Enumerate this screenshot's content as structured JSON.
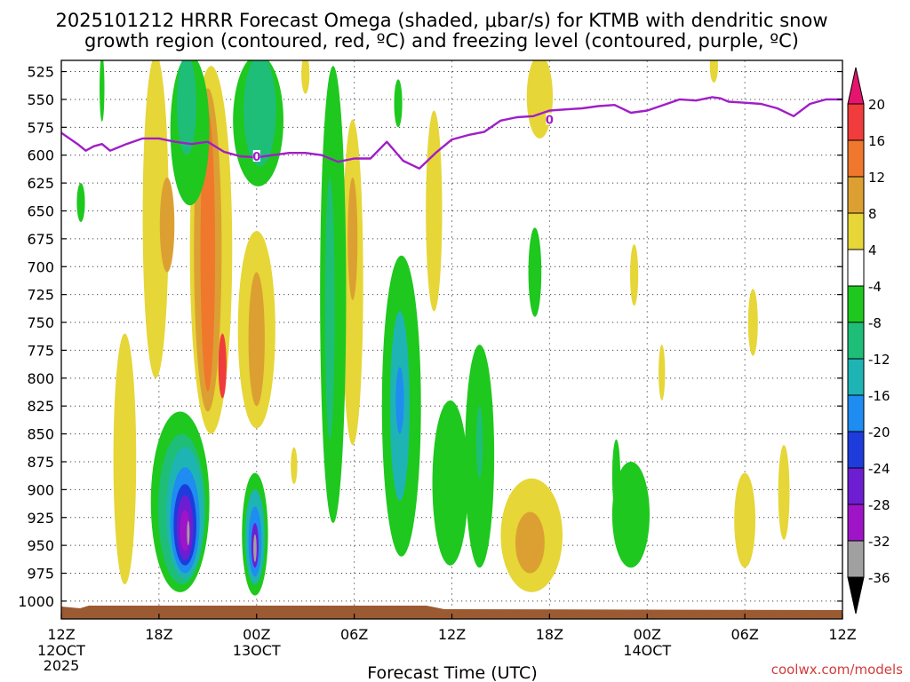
{
  "chart_data": {
    "type": "heatmap",
    "title_line1": "2025101212 HRRR Forecast Omega (shaded, μbar/s) for KTMB with dendritic snow",
    "title_line2": "growth region (contoured, red, ºC) and freezing level (contoured, purple, ºC)",
    "xlabel": "Forecast Time (UTC)",
    "ylabel": "Pressure (mb)",
    "credit": "coolwx.com/models",
    "x_range_hours": [
      0,
      48
    ],
    "x_ticks": [
      {
        "h": 0,
        "label": "12Z",
        "date": "12OCT",
        "year": "2025"
      },
      {
        "h": 6,
        "label": "18Z",
        "date": "",
        "year": ""
      },
      {
        "h": 12,
        "label": "00Z",
        "date": "13OCT",
        "year": ""
      },
      {
        "h": 18,
        "label": "06Z",
        "date": "",
        "year": ""
      },
      {
        "h": 24,
        "label": "12Z",
        "date": "",
        "year": ""
      },
      {
        "h": 30,
        "label": "18Z",
        "date": "",
        "year": ""
      },
      {
        "h": 36,
        "label": "00Z",
        "date": "14OCT",
        "year": ""
      },
      {
        "h": 42,
        "label": "06Z",
        "date": "",
        "year": ""
      },
      {
        "h": 48,
        "label": "12Z",
        "date": "",
        "year": ""
      }
    ],
    "y_ticks": [
      525,
      550,
      575,
      600,
      625,
      650,
      675,
      700,
      725,
      750,
      775,
      800,
      825,
      850,
      875,
      900,
      925,
      950,
      975,
      1000
    ],
    "y_range_mb": [
      515,
      1016
    ],
    "colorbar": {
      "labels": [
        "20",
        "16",
        "12",
        "8",
        "4",
        "-4",
        "-8",
        "-12",
        "-16",
        "-20",
        "-24",
        "-28",
        "-32",
        "-36"
      ],
      "bins": [
        {
          "range": "16 to 20",
          "color": "#f03c3c"
        },
        {
          "range": "12 to 16",
          "color": "#f0782d"
        },
        {
          "range": "8 to 12",
          "color": "#dca032"
        },
        {
          "range": "4 to 8",
          "color": "#e6d637"
        },
        {
          "range": "-4 to 4",
          "color": "#ffffff"
        },
        {
          "range": "-8 to -4",
          "color": "#1ec81e"
        },
        {
          "range": "-12 to -8",
          "color": "#1ebe78"
        },
        {
          "range": "-16 to -12",
          "color": "#1eb4b4"
        },
        {
          "range": "-20 to -16",
          "color": "#1e8cf0"
        },
        {
          "range": "-24 to -20",
          "color": "#1e3cdc"
        },
        {
          "range": "-28 to -24",
          "color": "#6e1ed2"
        },
        {
          "range": "-32 to -28",
          "color": "#a014c8"
        },
        {
          "range": "-36 to -32",
          "color": "#a0a0a0"
        }
      ],
      "top_arrow_color": "#e6146e",
      "bottom_arrow_color": "#000000"
    },
    "freezing_level": {
      "color": "#a01ec8",
      "label": "0",
      "label_points": [
        {
          "h": 12,
          "mb": 601
        },
        {
          "h": 30,
          "mb": 568
        }
      ],
      "hours": [
        0,
        1,
        1.5,
        2,
        2.5,
        3,
        4,
        5,
        6,
        7,
        8,
        9,
        10,
        11,
        12,
        13,
        14,
        15,
        16,
        17,
        18,
        19,
        20,
        21,
        22,
        23,
        24,
        25,
        26,
        27,
        28,
        29,
        30,
        31,
        32,
        33,
        34,
        35,
        36,
        37,
        38,
        39,
        40,
        40.5,
        41,
        42,
        43,
        44,
        45,
        46,
        47,
        48
      ],
      "mb": [
        580,
        590,
        596,
        592,
        590,
        596,
        590,
        585,
        585,
        588,
        590,
        588,
        597,
        601,
        602,
        600,
        598,
        598,
        600,
        606,
        603,
        603,
        588,
        605,
        612,
        598,
        586,
        582,
        579,
        569,
        566,
        565,
        560,
        559,
        558,
        556,
        555,
        562,
        560,
        555,
        550,
        551,
        548,
        549,
        552,
        553,
        554,
        558,
        565,
        554,
        550,
        550
      ]
    },
    "omega_features": [
      {
        "h": 1.2,
        "mb_top": 625,
        "mb_bot": 660,
        "w": 0.5,
        "value": -6
      },
      {
        "h": 3.9,
        "mb_top": 760,
        "mb_bot": 985,
        "w": 1.4,
        "value": 5
      },
      {
        "h": 5.8,
        "mb_top": 510,
        "mb_bot": 800,
        "w": 1.6,
        "value": 5
      },
      {
        "h": 6.5,
        "mb_top": 620,
        "mb_bot": 705,
        "w": 0.9,
        "value": 10
      },
      {
        "h": 9.2,
        "mb_top": 520,
        "mb_bot": 850,
        "w": 2.6,
        "value": 6
      },
      {
        "h": 9.0,
        "mb_top": 540,
        "mb_bot": 830,
        "w": 1.7,
        "value": 11
      },
      {
        "h": 9.0,
        "mb_top": 560,
        "mb_bot": 812,
        "w": 0.9,
        "value": 14
      },
      {
        "h": 9.9,
        "mb_top": 760,
        "mb_bot": 818,
        "w": 0.5,
        "value": 18
      },
      {
        "h": 12.0,
        "mb_top": 668,
        "mb_bot": 845,
        "w": 2.3,
        "value": 6
      },
      {
        "h": 12.0,
        "mb_top": 705,
        "mb_bot": 825,
        "w": 1.0,
        "value": 11
      },
      {
        "h": 14.3,
        "mb_top": 862,
        "mb_bot": 895,
        "w": 0.4,
        "value": 5
      },
      {
        "h": 15.0,
        "mb_top": 510,
        "mb_bot": 545,
        "w": 0.5,
        "value": 5
      },
      {
        "h": 17.9,
        "mb_top": 568,
        "mb_bot": 860,
        "w": 1.3,
        "value": 6
      },
      {
        "h": 17.9,
        "mb_top": 620,
        "mb_bot": 730,
        "w": 0.6,
        "value": 11
      },
      {
        "h": 22.9,
        "mb_top": 560,
        "mb_bot": 740,
        "w": 1.0,
        "value": 5
      },
      {
        "h": 28.9,
        "mb_top": 890,
        "mb_bot": 992,
        "w": 3.8,
        "value": 6
      },
      {
        "h": 28.8,
        "mb_top": 920,
        "mb_bot": 975,
        "w": 1.8,
        "value": 11
      },
      {
        "h": 29.4,
        "mb_top": 510,
        "mb_bot": 585,
        "w": 1.6,
        "value": 6
      },
      {
        "h": 35.2,
        "mb_top": 680,
        "mb_bot": 735,
        "w": 0.5,
        "value": 5
      },
      {
        "h": 36.9,
        "mb_top": 770,
        "mb_bot": 820,
        "w": 0.4,
        "value": 5
      },
      {
        "h": 40.1,
        "mb_top": 505,
        "mb_bot": 535,
        "w": 0.5,
        "value": 5
      },
      {
        "h": 42.5,
        "mb_top": 720,
        "mb_bot": 780,
        "w": 0.6,
        "value": 5
      },
      {
        "h": 42.0,
        "mb_top": 885,
        "mb_bot": 970,
        "w": 1.3,
        "value": 5
      },
      {
        "h": 44.4,
        "mb_top": 860,
        "mb_bot": 945,
        "w": 0.7,
        "value": 5
      },
      {
        "h": 2.5,
        "mb_top": 510,
        "mb_bot": 570,
        "w": 0.3,
        "value": -4
      },
      {
        "h": 7.9,
        "mb_top": 510,
        "mb_bot": 645,
        "w": 2.4,
        "value": -6
      },
      {
        "h": 7.7,
        "mb_top": 510,
        "mb_bot": 600,
        "w": 1.2,
        "value": -10
      },
      {
        "h": 12.1,
        "mb_top": 510,
        "mb_bot": 628,
        "w": 3.1,
        "value": -6
      },
      {
        "h": 12.2,
        "mb_top": 510,
        "mb_bot": 610,
        "w": 2.0,
        "value": -10
      },
      {
        "h": 16.7,
        "mb_top": 520,
        "mb_bot": 930,
        "w": 1.6,
        "value": -6
      },
      {
        "h": 16.5,
        "mb_top": 620,
        "mb_bot": 855,
        "w": 0.6,
        "value": -10
      },
      {
        "h": 20.7,
        "mb_top": 532,
        "mb_bot": 575,
        "w": 0.5,
        "value": -6
      },
      {
        "h": 20.9,
        "mb_top": 690,
        "mb_bot": 960,
        "w": 2.4,
        "value": -6
      },
      {
        "h": 20.8,
        "mb_top": 740,
        "mb_bot": 910,
        "w": 1.2,
        "value": -12
      },
      {
        "h": 20.8,
        "mb_top": 790,
        "mb_bot": 850,
        "w": 0.5,
        "value": -18
      },
      {
        "h": 23.9,
        "mb_top": 820,
        "mb_bot": 968,
        "w": 2.2,
        "value": -6
      },
      {
        "h": 25.7,
        "mb_top": 770,
        "mb_bot": 970,
        "w": 1.8,
        "value": -6
      },
      {
        "h": 25.7,
        "mb_top": 825,
        "mb_bot": 890,
        "w": 0.4,
        "value": -10
      },
      {
        "h": 29.1,
        "mb_top": 665,
        "mb_bot": 745,
        "w": 0.8,
        "value": -6
      },
      {
        "h": 34.1,
        "mb_top": 855,
        "mb_bot": 920,
        "w": 0.5,
        "value": -5
      },
      {
        "h": 35.0,
        "mb_top": 875,
        "mb_bot": 970,
        "w": 2.3,
        "value": -6
      },
      {
        "h": 7.3,
        "mb_top": 830,
        "mb_bot": 992,
        "w": 3.6,
        "value": -6
      },
      {
        "h": 7.4,
        "mb_top": 850,
        "mb_bot": 985,
        "w": 2.9,
        "value": -10
      },
      {
        "h": 7.6,
        "mb_top": 862,
        "mb_bot": 980,
        "w": 2.3,
        "value": -14
      },
      {
        "h": 7.6,
        "mb_top": 880,
        "mb_bot": 975,
        "w": 1.8,
        "value": -18
      },
      {
        "h": 7.6,
        "mb_top": 895,
        "mb_bot": 968,
        "w": 1.4,
        "value": -22
      },
      {
        "h": 7.6,
        "mb_top": 905,
        "mb_bot": 963,
        "w": 1.0,
        "value": -26
      },
      {
        "h": 7.6,
        "mb_top": 918,
        "mb_bot": 955,
        "w": 0.6,
        "value": -30
      },
      {
        "h": 7.8,
        "mb_top": 928,
        "mb_bot": 950,
        "w": 0.15,
        "value": -34
      },
      {
        "h": 11.9,
        "mb_top": 885,
        "mb_bot": 995,
        "w": 1.6,
        "value": -6
      },
      {
        "h": 11.9,
        "mb_top": 900,
        "mb_bot": 985,
        "w": 1.2,
        "value": -12
      },
      {
        "h": 11.9,
        "mb_top": 915,
        "mb_bot": 978,
        "w": 0.8,
        "value": -18
      },
      {
        "h": 11.9,
        "mb_top": 930,
        "mb_bot": 970,
        "w": 0.45,
        "value": -26
      },
      {
        "h": 11.9,
        "mb_top": 940,
        "mb_bot": 965,
        "w": 0.2,
        "value": -34
      }
    ]
  }
}
